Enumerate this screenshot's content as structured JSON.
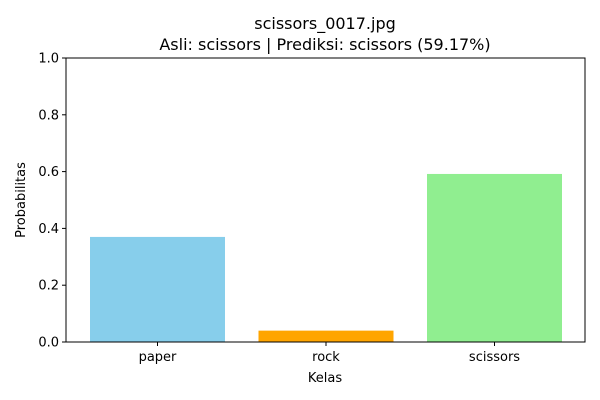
{
  "chart_data": {
    "type": "bar",
    "title": "scissors_0017.jpg",
    "subtitle": "Asli: scissors | Prediksi: scissors (59.17%)",
    "xlabel": "Kelas",
    "ylabel": "Probabilitas",
    "categories": [
      "paper",
      "rock",
      "scissors"
    ],
    "values": [
      0.37,
      0.04,
      0.5917
    ],
    "colors": [
      "#87ceeb",
      "#ffa500",
      "#90ee90"
    ],
    "ylim": [
      0,
      1.0
    ],
    "yticks": [
      "0.0",
      "0.2",
      "0.4",
      "0.6",
      "0.8",
      "1.0"
    ],
    "grid": false,
    "legend": "none"
  }
}
